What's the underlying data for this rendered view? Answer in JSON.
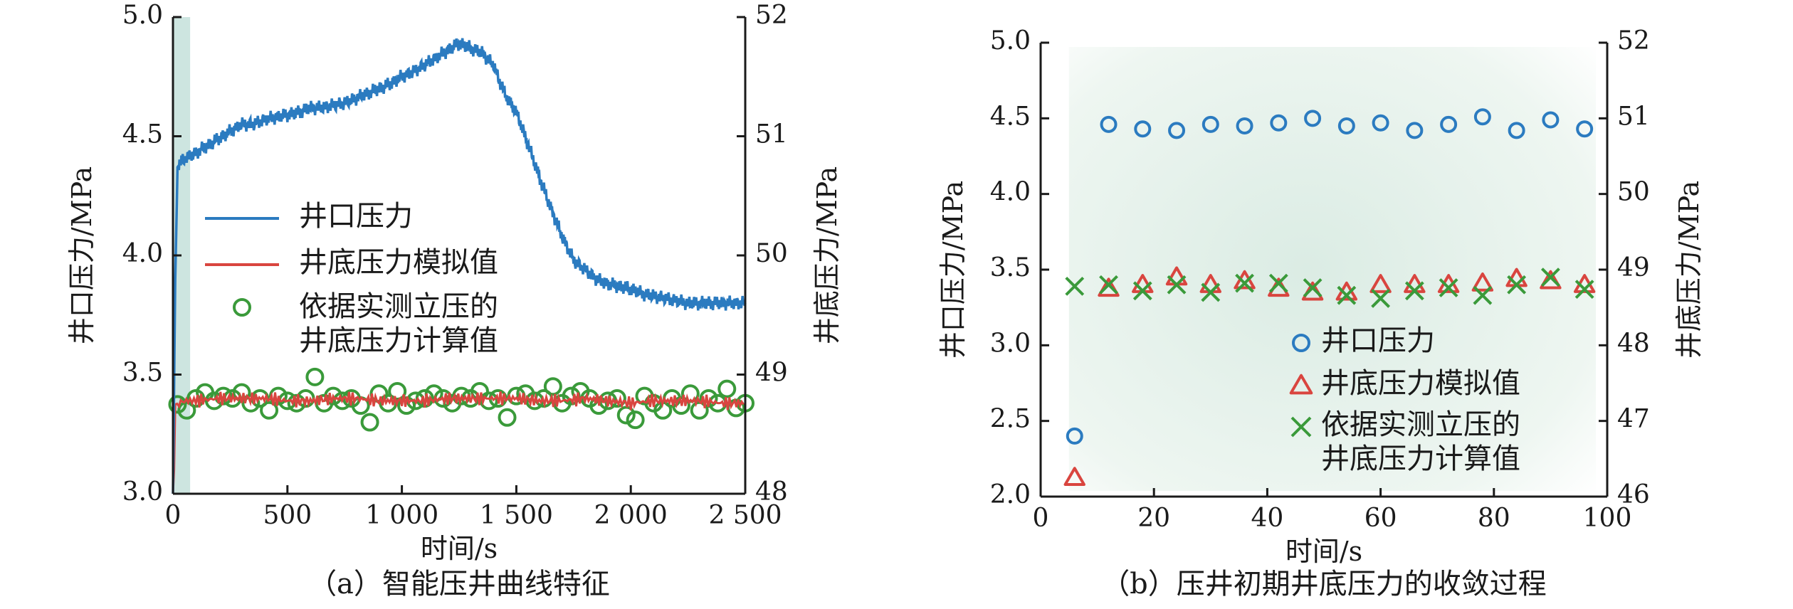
{
  "chart_data": [
    {
      "type": "line",
      "caption": "（a）智能压井曲线特征",
      "xlabel": "时间/s",
      "ylabel_left": "井口压力/MPa",
      "ylabel_right": "井底压力/MPa",
      "xlim": [
        0,
        2500
      ],
      "ylim_left": [
        3.0,
        5.0
      ],
      "ylim_right": [
        48,
        52
      ],
      "x_ticks": [
        {
          "v": 0,
          "label": "0"
        },
        {
          "v": 500,
          "label": "500"
        },
        {
          "v": 1000,
          "label": "1 000"
        },
        {
          "v": 1500,
          "label": "1 500"
        },
        {
          "v": 2000,
          "label": "2 000"
        },
        {
          "v": 2500,
          "label": "2 500"
        }
      ],
      "y_left_ticks": [
        {
          "v": 3.0,
          "label": "3.0"
        },
        {
          "v": 3.5,
          "label": "3.5"
        },
        {
          "v": 4.0,
          "label": "4.0"
        },
        {
          "v": 4.5,
          "label": "4.5"
        },
        {
          "v": 5.0,
          "label": "5.0"
        }
      ],
      "y_right_ticks": [
        {
          "v": 48,
          "label": "48"
        },
        {
          "v": 49,
          "label": "49"
        },
        {
          "v": 50,
          "label": "50"
        },
        {
          "v": 51,
          "label": "51"
        },
        {
          "v": 52,
          "label": "52"
        }
      ],
      "shaded_x_range": [
        0,
        75
      ],
      "series": [
        {
          "name": "井口压力",
          "style": "line",
          "color": "#2b7bc0",
          "x": [
            0,
            10,
            20,
            40,
            60,
            100,
            150,
            200,
            250,
            300,
            350,
            400,
            450,
            500,
            550,
            600,
            650,
            700,
            750,
            800,
            850,
            900,
            950,
            1000,
            1050,
            1100,
            1150,
            1200,
            1250,
            1300,
            1350,
            1400,
            1430,
            1460,
            1500,
            1550,
            1600,
            1650,
            1700,
            1750,
            1800,
            1850,
            1900,
            1950,
            2000,
            2050,
            2100,
            2150,
            2200,
            2250,
            2300,
            2350,
            2400,
            2450,
            2500
          ],
          "y": [
            3.0,
            3.9,
            4.37,
            4.4,
            4.41,
            4.43,
            4.46,
            4.49,
            4.52,
            4.55,
            4.55,
            4.57,
            4.58,
            4.59,
            4.6,
            4.62,
            4.62,
            4.63,
            4.64,
            4.66,
            4.68,
            4.7,
            4.72,
            4.75,
            4.77,
            4.8,
            4.83,
            4.86,
            4.89,
            4.87,
            4.85,
            4.8,
            4.72,
            4.66,
            4.6,
            4.47,
            4.33,
            4.2,
            4.08,
            3.98,
            3.94,
            3.9,
            3.88,
            3.87,
            3.86,
            3.84,
            3.83,
            3.82,
            3.81,
            3.8,
            3.8,
            3.8,
            3.8,
            3.8,
            3.8
          ]
        },
        {
          "name": "井底压力模拟值",
          "style": "line",
          "color": "#d9453f",
          "x": [
            0,
            5,
            10,
            50,
            100,
            200,
            300,
            400,
            500,
            600,
            700,
            800,
            900,
            1000,
            1100,
            1200,
            1300,
            1400,
            1500,
            1600,
            1700,
            1800,
            1900,
            2000,
            2100,
            2200,
            2300,
            2400,
            2500
          ],
          "y": [
            48.0,
            48.2,
            48.75,
            48.78,
            48.78,
            48.8,
            48.8,
            48.8,
            48.78,
            48.78,
            48.8,
            48.8,
            48.78,
            48.78,
            48.78,
            48.8,
            48.8,
            48.8,
            48.8,
            48.78,
            48.78,
            48.8,
            48.78,
            48.76,
            48.78,
            48.78,
            48.78,
            48.76,
            48.76
          ]
        },
        {
          "name": "依据实测立压的\n井底压力计算值",
          "style": "marker",
          "marker": "circle",
          "color": "#3a9a3a",
          "x": [
            20,
            60,
            100,
            140,
            180,
            220,
            260,
            300,
            340,
            380,
            420,
            460,
            500,
            540,
            580,
            620,
            660,
            700,
            740,
            780,
            820,
            860,
            900,
            940,
            980,
            1020,
            1060,
            1100,
            1140,
            1180,
            1220,
            1260,
            1300,
            1340,
            1380,
            1420,
            1460,
            1500,
            1540,
            1580,
            1620,
            1660,
            1700,
            1740,
            1780,
            1820,
            1860,
            1900,
            1940,
            1980,
            2020,
            2060,
            2100,
            2140,
            2180,
            2220,
            2260,
            2300,
            2340,
            2380,
            2420,
            2460,
            2500
          ],
          "y": [
            48.75,
            48.7,
            48.8,
            48.85,
            48.78,
            48.82,
            48.8,
            48.85,
            48.76,
            48.8,
            48.7,
            48.82,
            48.78,
            48.76,
            48.8,
            48.98,
            48.76,
            48.82,
            48.78,
            48.8,
            48.74,
            48.6,
            48.84,
            48.76,
            48.86,
            48.74,
            48.78,
            48.8,
            48.84,
            48.8,
            48.76,
            48.82,
            48.8,
            48.86,
            48.78,
            48.8,
            48.64,
            48.82,
            48.84,
            48.78,
            48.8,
            48.9,
            48.76,
            48.82,
            48.86,
            48.8,
            48.74,
            48.78,
            48.8,
            48.66,
            48.62,
            48.82,
            48.76,
            48.7,
            48.8,
            48.74,
            48.84,
            48.7,
            48.8,
            48.76,
            48.88,
            48.72,
            48.76
          ]
        }
      ]
    },
    {
      "type": "scatter",
      "caption": "（b）压井初期井底压力的收敛过程",
      "xlabel": "时间/s",
      "ylabel_left": "井口压力/MPa",
      "ylabel_right": "井底压力/MPa",
      "xlim": [
        0,
        100
      ],
      "ylim_left": [
        2.0,
        5.0
      ],
      "ylim_right": [
        46,
        52
      ],
      "x_ticks": [
        {
          "v": 0,
          "label": "0"
        },
        {
          "v": 20,
          "label": "20"
        },
        {
          "v": 40,
          "label": "40"
        },
        {
          "v": 60,
          "label": "60"
        },
        {
          "v": 80,
          "label": "80"
        },
        {
          "v": 100,
          "label": "100"
        }
      ],
      "y_left_ticks": [
        {
          "v": 2.0,
          "label": "2.0"
        },
        {
          "v": 2.5,
          "label": "2.5"
        },
        {
          "v": 3.0,
          "label": "3.0"
        },
        {
          "v": 3.5,
          "label": "3.5"
        },
        {
          "v": 4.0,
          "label": "4.0"
        },
        {
          "v": 4.5,
          "label": "4.5"
        },
        {
          "v": 5.0,
          "label": "5.0"
        }
      ],
      "y_right_ticks": [
        {
          "v": 46,
          "label": "46"
        },
        {
          "v": 47,
          "label": "47"
        },
        {
          "v": 48,
          "label": "48"
        },
        {
          "v": 49,
          "label": "49"
        },
        {
          "v": 50,
          "label": "50"
        },
        {
          "v": 51,
          "label": "51"
        },
        {
          "v": 52,
          "label": "52"
        }
      ],
      "series": [
        {
          "name": "井口压力",
          "axis": "left",
          "marker": "circle",
          "color": "#2b7bc0",
          "x": [
            6,
            12,
            18,
            24,
            30,
            36,
            42,
            48,
            54,
            60,
            66,
            72,
            78,
            84,
            90,
            96
          ],
          "y": [
            2.4,
            4.46,
            4.43,
            4.42,
            4.46,
            4.45,
            4.47,
            4.5,
            4.45,
            4.47,
            4.42,
            4.46,
            4.51,
            4.42,
            4.49,
            4.43
          ]
        },
        {
          "name": "井底压力模拟值",
          "axis": "right",
          "marker": "triangle",
          "color": "#d9453f",
          "x": [
            6,
            12,
            18,
            24,
            30,
            36,
            42,
            48,
            54,
            60,
            66,
            72,
            78,
            84,
            90,
            96
          ],
          "y": [
            46.25,
            48.75,
            48.8,
            48.9,
            48.8,
            48.85,
            48.75,
            48.7,
            48.7,
            48.8,
            48.8,
            48.8,
            48.82,
            48.88,
            48.85,
            48.8
          ]
        },
        {
          "name": "依据实测立压的\n井底压力计算值",
          "axis": "right",
          "marker": "cross",
          "color": "#3a9a3a",
          "x": [
            6,
            12,
            18,
            24,
            30,
            36,
            42,
            48,
            54,
            60,
            66,
            72,
            78,
            84,
            90,
            96
          ],
          "y": [
            48.78,
            48.8,
            48.72,
            48.8,
            48.7,
            48.82,
            48.82,
            48.76,
            48.66,
            48.62,
            48.72,
            48.76,
            48.66,
            48.8,
            48.9,
            48.74
          ]
        }
      ]
    }
  ]
}
